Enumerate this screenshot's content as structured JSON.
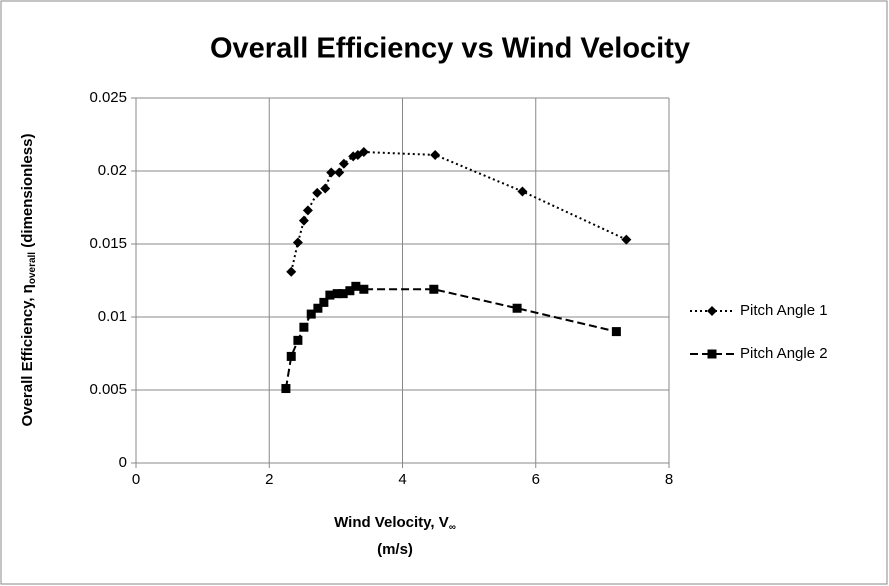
{
  "chart_data": {
    "type": "scatter",
    "title": "Overall Efficiency vs Wind Velocity",
    "xlabel": {
      "main": "Wind Velocity, V",
      "sub": "∞",
      "line2": "(m/s)"
    },
    "ylabel": {
      "main": "Overall Efficiency, η",
      "sub": "overall",
      "rest": " (dimensionless)"
    },
    "xlim": [
      0,
      8
    ],
    "xticks": [
      0,
      2,
      4,
      6,
      8
    ],
    "ylim": [
      0,
      0.025
    ],
    "yticks": [
      0,
      0.005,
      0.01,
      0.015,
      0.02,
      0.025
    ],
    "grid": true,
    "legend": "right",
    "series": [
      {
        "name": "Pitch Angle 1",
        "color": "#000000",
        "dash": "dotted",
        "marker": "diamond",
        "x": [
          2.33,
          2.43,
          2.52,
          2.58,
          2.72,
          2.84,
          2.93,
          3.05,
          3.12,
          3.26,
          3.33,
          3.42,
          4.49,
          5.8,
          7.36
        ],
        "values": [
          0.0131,
          0.0151,
          0.0166,
          0.0173,
          0.0185,
          0.0188,
          0.0199,
          0.0199,
          0.0205,
          0.021,
          0.0211,
          0.0213,
          0.0211,
          0.0186,
          0.0153
        ]
      },
      {
        "name": "Pitch Angle 2",
        "color": "#000000",
        "dash": "dashed",
        "marker": "square",
        "x": [
          2.25,
          2.33,
          2.43,
          2.52,
          2.63,
          2.73,
          2.82,
          2.91,
          3.02,
          3.11,
          3.21,
          3.3,
          3.42,
          4.47,
          5.72,
          7.21
        ],
        "values": [
          0.0051,
          0.0073,
          0.0084,
          0.0093,
          0.0102,
          0.0106,
          0.011,
          0.0115,
          0.0116,
          0.0116,
          0.0118,
          0.0121,
          0.0119,
          0.0119,
          0.0106,
          0.009
        ]
      }
    ]
  }
}
